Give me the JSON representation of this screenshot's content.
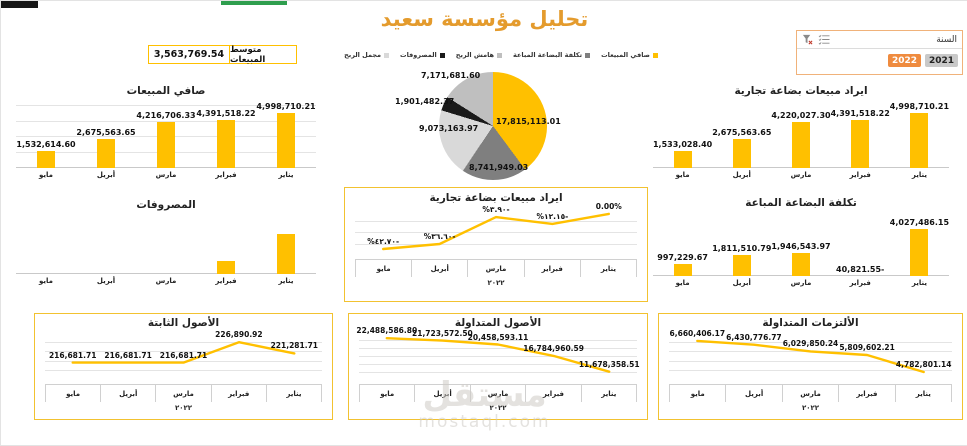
{
  "page": {
    "title": "تحليل مؤسسة سعيد",
    "watermark_name": "مستقل",
    "watermark_domain": "mostaql.com"
  },
  "kpi": {
    "label": "متوسط المبيعات",
    "value": "3,563,769.54"
  },
  "slicer": {
    "title": "السنة",
    "options": [
      "2022",
      "2021"
    ],
    "selected": "2022",
    "icons": [
      "clear-filter-icon",
      "list-icon"
    ]
  },
  "colors": {
    "gold": "#ffc000",
    "title_gold": "#e49b2d",
    "slicer_selected": "#ef8b3f",
    "slicer_unselected": "#c9c9c9",
    "pie_black": "#1a1a1a",
    "pie_dark_gray": "#7f7f7f",
    "pie_light_gray": "#d9d9d9",
    "pie_mid_gray": "#bfbfbf"
  },
  "chart_data": [
    {
      "id": "net_sales",
      "type": "bar",
      "title": "صافي المبيعات",
      "categories": [
        "مايو",
        "أبريل",
        "مارس",
        "فبراير",
        "يناير"
      ],
      "values": [
        1532614.6,
        2675563.65,
        4216706.33,
        4391518.22,
        4998710.21
      ],
      "labels": [
        "1,532,614.60",
        "2,675,563.65",
        "4,216,706.33",
        "4,391,518.22",
        "4,998,710.21"
      ],
      "bar_color": "#ffc000",
      "grid": true,
      "ylim": [
        0,
        6200000
      ]
    },
    {
      "id": "revenue",
      "type": "bar",
      "title": "ايراد مبيعات بضاعة تجارية",
      "categories": [
        "مايو",
        "أبريل",
        "مارس",
        "فبراير",
        "يناير"
      ],
      "values": [
        1533028.4,
        2675563.65,
        4220027.3,
        4391518.22,
        4998710.21
      ],
      "labels": [
        "1,533,028.40",
        "2,675,563.65",
        "4,220,027.30",
        "4,391,518.22",
        "4,998,710.21"
      ],
      "bar_color": "#ffc000",
      "grid": false,
      "ylim": [
        0,
        6200000
      ]
    },
    {
      "id": "expenses",
      "type": "bar",
      "title": "المصروفات",
      "categories": [
        "مايو",
        "أبريل",
        "مارس",
        "فبراير",
        "يناير"
      ],
      "values": [
        0,
        0,
        0,
        470000,
        1430000
      ],
      "values_estimated": true,
      "labels": null,
      "bar_color": "#ffc000",
      "grid": false,
      "ylim": [
        0,
        2150000
      ]
    },
    {
      "id": "cogs",
      "type": "bar",
      "title": "تكلفة البضاعة المباعة",
      "categories": [
        "مايو",
        "أبريل",
        "مارس",
        "فبراير",
        "يناير"
      ],
      "values": [
        997229.67,
        1811510.79,
        1946543.97,
        -40821.55,
        4027486.15
      ],
      "labels": [
        "997,229.67",
        "1,811,510.79",
        "1,946,543.97",
        "40,821.55-",
        "4,027,486.15"
      ],
      "bar_color": "#ffc000",
      "grid": false,
      "ylim": [
        0,
        5500000
      ]
    },
    {
      "id": "pie_profit",
      "type": "pie",
      "legend": [
        {
          "label": "مجمل الربح",
          "color": "#d9d9d9"
        },
        {
          "label": "المصروفات",
          "color": "#1a1a1a"
        },
        {
          "label": "هامش الربح",
          "color": "#bfbfbf"
        },
        {
          "label": "تكلفة البضاعة المباعة",
          "color": "#7f7f7f"
        },
        {
          "label": "صافي المبيعات",
          "color": "#ffc000"
        }
      ],
      "slices": [
        {
          "label": "صافي المبيعات",
          "value": 17815113.01,
          "display": "17,815,113.01",
          "color": "#ffc000"
        },
        {
          "label": "تكلفة البضاعة المباعة",
          "value": 8741949.03,
          "display": "8,741,949.03",
          "color": "#7f7f7f"
        },
        {
          "label": "مجمل الربح",
          "value": 9073163.97,
          "display": "9,073,163.97",
          "color": "#d9d9d9"
        },
        {
          "label": "المصروفات",
          "value": 1901482.37,
          "display": "1,901,482.37",
          "color": "#1a1a1a"
        },
        {
          "label": "هامش الربح",
          "value": 7171681.6,
          "display": "7,171,681.60",
          "color": "#bfbfbf"
        }
      ]
    },
    {
      "id": "rev_pct",
      "type": "line",
      "title": "ايراد مبيعات بضاعة تجارية",
      "categories": [
        "مايو",
        "أبريل",
        "مارس",
        "فبراير",
        "يناير"
      ],
      "values": [
        -42.7,
        -36.6,
        -3.9,
        -12.15,
        0.0
      ],
      "labels": [
        "%٤٢.٧٠-",
        "%٣٦.٦٠-",
        "%٣.٩٠-",
        "%١٢.١٥-",
        "0.00%"
      ],
      "labels_ltr": true,
      "ylim": [
        -50,
        6
      ],
      "year": "٢٠٢٢",
      "grid_lines": 3,
      "line_color": "#ffc000"
    },
    {
      "id": "fixed_assets",
      "type": "line",
      "title": "الأصول الثابتة",
      "categories": [
        "مايو",
        "أبريل",
        "مارس",
        "فبراير",
        "يناير"
      ],
      "values": [
        216681.71,
        216681.71,
        216681.71,
        226890.92,
        221281.71
      ],
      "labels": [
        "216,681.71",
        "216,681.71",
        "216,681.71",
        "226,890.92",
        "221,281.71"
      ],
      "ylim": [
        208000,
        232000
      ],
      "year": "٢٠٢٢",
      "grid_lines": 4,
      "line_color": "#ffc000"
    },
    {
      "id": "current_assets",
      "type": "line",
      "title": "الأصول المتداولة",
      "categories": [
        "مايو",
        "أبريل",
        "مارس",
        "فبراير",
        "يناير"
      ],
      "values": [
        22488586.8,
        21723572.5,
        20458593.11,
        16784960.59,
        11678358.51
      ],
      "labels": [
        "22,488,586.80",
        "21,723,572.50",
        "20,458,593.11",
        "16,784,960.59",
        "11,678,358.51"
      ],
      "ylim": [
        9000000,
        24500000
      ],
      "year": "٢٠٢٢",
      "grid_lines": 5,
      "line_color": "#ffc000"
    },
    {
      "id": "liabilities",
      "type": "line",
      "title": "الألتزمات المتداولة",
      "categories": [
        "مايو",
        "أبريل",
        "مارس",
        "فبراير",
        "يناير"
      ],
      "values": [
        6660406.17,
        6430776.77,
        6029850.24,
        5809602.21,
        4782801.14
      ],
      "labels": [
        "6,660,406.17",
        "6,430,776.77",
        "6,029,850.24",
        "5,809,602.21",
        "4,782,801.14"
      ],
      "ylim": [
        4300000,
        7200000
      ],
      "year": "٢٠٢٢",
      "grid_lines": 4,
      "line_color": "#ffc000"
    }
  ]
}
